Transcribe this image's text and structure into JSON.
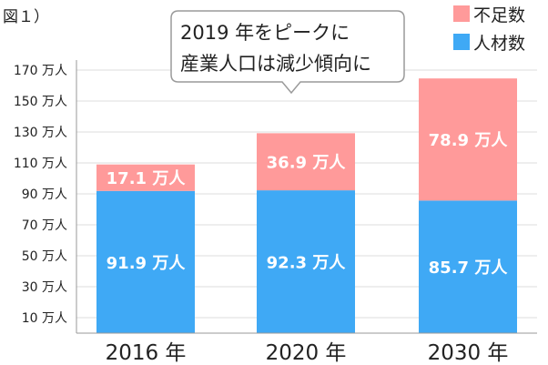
{
  "figure_label": "図１）",
  "chart_data": {
    "type": "bar",
    "stacked": true,
    "categories": [
      "2016 年",
      "2020 年",
      "2030 年"
    ],
    "series": [
      {
        "name": "人材数",
        "values": [
          91.9,
          92.3,
          85.7
        ],
        "labels": [
          "91.9 万人",
          "92.3 万人",
          "85.7 万人"
        ],
        "color": "#3fa9f5"
      },
      {
        "name": "不足数",
        "values": [
          17.1,
          36.9,
          78.9
        ],
        "labels": [
          "17.1 万人",
          "36.9 万人",
          "78.9 万人"
        ],
        "color": "#ff9a9a"
      }
    ],
    "y_ticks": [
      10,
      30,
      50,
      70,
      90,
      110,
      130,
      150,
      170
    ],
    "y_tick_labels": [
      "10 万人",
      "30 万人",
      "50 万人",
      "70 万人",
      "90 万人",
      "110 万人",
      "130 万人",
      "150 万人",
      "170 万人"
    ],
    "ylim": [
      0,
      180
    ],
    "grid": true,
    "legend_position": "top-right",
    "annotation": {
      "lines": [
        "2019 年をピークに",
        "産業人口は減少傾向に"
      ]
    }
  }
}
